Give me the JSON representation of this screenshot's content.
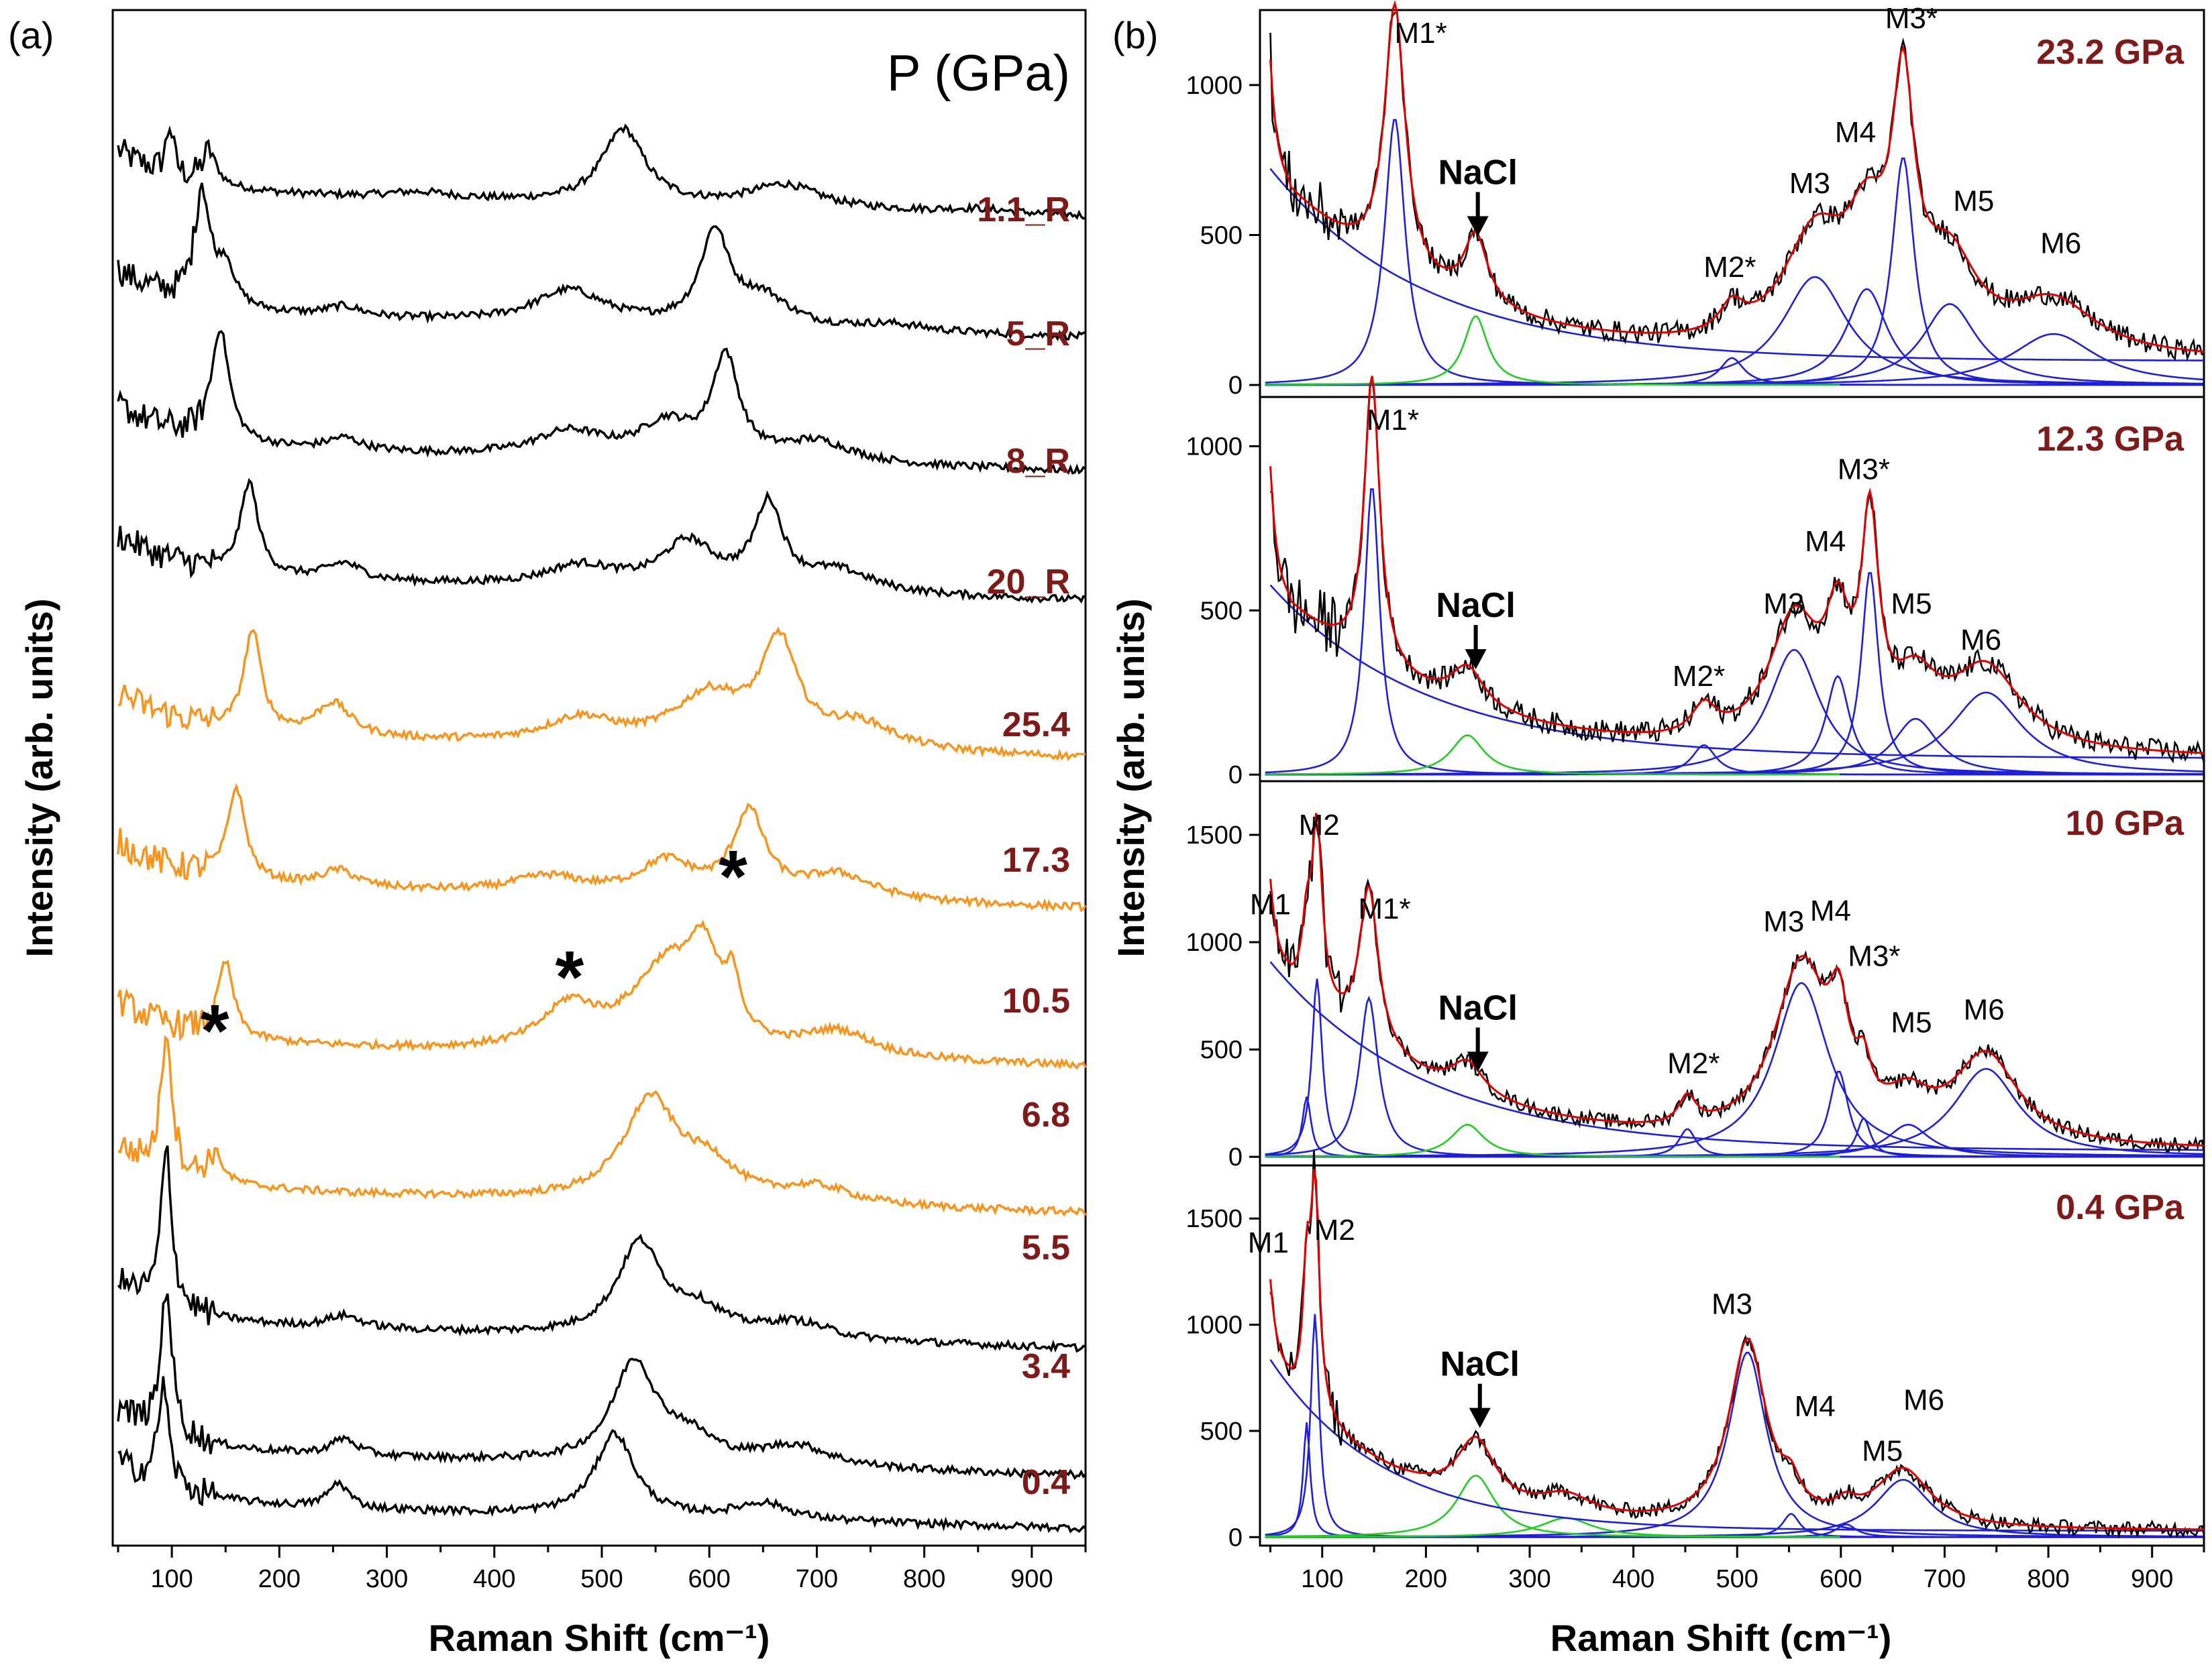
{
  "chart_data": [
    {
      "panel": "(a)",
      "type": "line",
      "title": "P (GPa)",
      "xlabel": "Raman Shift (cm⁻¹)",
      "ylabel": "Intensity (arb. units)",
      "xlim": [
        45,
        950
      ],
      "xticks": [
        100,
        200,
        300,
        400,
        500,
        600,
        700,
        800,
        900
      ],
      "series": [
        {
          "name": "1.1_R",
          "color": "#000000",
          "offset": 10,
          "amp": 1.25,
          "peaks": [
            [
              98,
              0.6,
              4
            ],
            [
              135,
              0.4,
              8
            ],
            [
              330,
              0.08,
              40
            ],
            [
              520,
              0.9,
              24
            ],
            [
              670,
              0.28,
              40
            ],
            [
              850,
              0.05,
              40
            ]
          ],
          "base": 0.25
        },
        {
          "name": "5_R",
          "color": "#000000",
          "offset": 9,
          "amp": 1.25,
          "peaks": [
            [
              128,
              1.4,
              8
            ],
            [
              150,
              0.5,
              10
            ],
            [
              260,
              0.12,
              20
            ],
            [
              470,
              0.4,
              40
            ],
            [
              605,
              1.1,
              16
            ],
            [
              650,
              0.35,
              30
            ],
            [
              770,
              0.08,
              40
            ]
          ],
          "base": 0.2
        },
        {
          "name": "8_R",
          "color": "#000000",
          "offset": 8,
          "amp": 1.25,
          "peaks": [
            [
              145,
              1.35,
              10
            ],
            [
              260,
              0.15,
              20
            ],
            [
              470,
              0.3,
              40
            ],
            [
              560,
              0.4,
              30
            ],
            [
              615,
              1.2,
              15
            ],
            [
              700,
              0.25,
              40
            ]
          ],
          "base": 0.2
        },
        {
          "name": "20_R",
          "color": "#000000",
          "offset": 7,
          "amp": 1.25,
          "peaks": [
            [
              172,
              1.1,
              10
            ],
            [
              260,
              0.2,
              20
            ],
            [
              480,
              0.25,
              40
            ],
            [
              580,
              0.55,
              30
            ],
            [
              655,
              1.0,
              16
            ],
            [
              720,
              0.25,
              40
            ]
          ],
          "base": 0.2
        },
        {
          "name": "25.4",
          "color": "#f7941d",
          "offset": 6,
          "amp": 1.25,
          "peaks": [
            [
              175,
              1.2,
              10
            ],
            [
              250,
              0.4,
              20
            ],
            [
              480,
              0.3,
              40
            ],
            [
              600,
              0.6,
              40
            ],
            [
              665,
              1.2,
              20
            ],
            [
              740,
              0.3,
              40
            ]
          ],
          "base": 0.2
        },
        {
          "name": "17.3",
          "color": "#f7941d",
          "offset": 5,
          "amp": 1.25,
          "peaks": [
            [
              160,
              1.1,
              10
            ],
            [
              255,
              0.2,
              20
            ],
            [
              450,
              0.2,
              40
            ],
            [
              560,
              0.4,
              30
            ],
            [
              637,
              1.0,
              18
            ],
            [
              720,
              0.3,
              40
            ]
          ],
          "base": 0.2
        },
        {
          "name": "10.5",
          "color": "#f7941d",
          "offset": 4,
          "amp": 1.25,
          "peaks": [
            [
              150,
              0.9,
              9
            ],
            [
              470,
              0.5,
              30
            ],
            [
              560,
              1.0,
              40
            ],
            [
              595,
              0.9,
              18
            ],
            [
              622,
              0.6,
              8
            ],
            [
              720,
              0.3,
              40
            ]
          ],
          "base": 0.2
        },
        {
          "name": "6.8",
          "color": "#f7941d",
          "offset": 3,
          "amp": 1.25,
          "peaks": [
            [
              95,
              1.7,
              6
            ],
            [
              140,
              0.35,
              8
            ],
            [
              545,
              1.2,
              30
            ],
            [
              600,
              0.4,
              30
            ],
            [
              700,
              0.2,
              40
            ]
          ],
          "base": 0.2
        },
        {
          "name": "5.5",
          "color": "#000000",
          "offset": 2,
          "amp": 1.25,
          "peaks": [
            [
              95,
              1.9,
              6
            ],
            [
              260,
              0.15,
              20
            ],
            [
              535,
              1.1,
              25
            ],
            [
              590,
              0.3,
              30
            ],
            [
              680,
              0.2,
              40
            ]
          ],
          "base": 0.2
        },
        {
          "name": "3.4",
          "color": "#000000",
          "offset": 1,
          "amp": 1.25,
          "peaks": [
            [
              95,
              1.8,
              6
            ],
            [
              260,
              0.2,
              15
            ],
            [
              530,
              1.2,
              24
            ],
            [
              580,
              0.3,
              30
            ],
            [
              680,
              0.25,
              40
            ]
          ],
          "base": 0.2
        },
        {
          "name": "0.4",
          "color": "#000000",
          "offset": 0,
          "amp": 1.25,
          "peaks": [
            [
              92,
              1.2,
              6
            ],
            [
              255,
              0.3,
              12
            ],
            [
              512,
              1.0,
              22
            ],
            [
              650,
              0.2,
              30
            ]
          ],
          "base": 0.15
        }
      ],
      "annotations": [
        {
          "text": "*",
          "x": 140
        },
        {
          "text": "*",
          "x": 470
        },
        {
          "text": "*",
          "x": 622
        }
      ]
    },
    {
      "panel": "(b)",
      "type": "line",
      "xlabel": "Raman Shift (cm⁻¹)",
      "ylabel": "Intensity (arb. units)",
      "xlim": [
        40,
        950
      ],
      "xticks": [
        100,
        200,
        300,
        400,
        500,
        600,
        700,
        800,
        900
      ],
      "subplots": [
        {
          "pressure": "23.2 GPa",
          "ylim": [
            -40,
            1250
          ],
          "yticks": [
            0,
            500,
            1000
          ],
          "background": {
            "a0": 700,
            "x0": 55,
            "decay": 150,
            "floor": 80
          },
          "blue_peaks": [
            [
              170,
              890,
              12
            ],
            [
              495,
              90,
              14
            ],
            [
              575,
              360,
              38
            ],
            [
              625,
              320,
              24
            ],
            [
              660,
              760,
              13
            ],
            [
              705,
              270,
              32
            ],
            [
              805,
              170,
              50
            ]
          ],
          "green_peaks": [
            [
              248,
              230,
              10
            ]
          ],
          "labels": [
            {
              "text": "M1*",
              "x": 195,
              "y": 1140
            },
            {
              "text": "M2*",
              "x": 493,
              "y": 360
            },
            {
              "text": "M3",
              "x": 570,
              "y": 640
            },
            {
              "text": "M4",
              "x": 614,
              "y": 810
            },
            {
              "text": "M3*",
              "x": 668,
              "y": 1190
            },
            {
              "text": "M5",
              "x": 728,
              "y": 580
            },
            {
              "text": "M6",
              "x": 812,
              "y": 440
            }
          ],
          "nacl": {
            "text": "NaCl",
            "x": 250,
            "y": 670
          }
        },
        {
          "pressure": "12.3 GPa",
          "ylim": [
            -20,
            1150
          ],
          "yticks": [
            0,
            500,
            1000
          ],
          "background": {
            "a0": 560,
            "x0": 55,
            "decay": 150,
            "floor": 50
          },
          "blue_peaks": [
            [
              148,
              880,
              9
            ],
            [
              468,
              90,
              14
            ],
            [
              555,
              380,
              30
            ],
            [
              597,
              300,
              14
            ],
            [
              628,
              620,
              10
            ],
            [
              672,
              170,
              26
            ],
            [
              740,
              250,
              42
            ]
          ],
          "green_peaks": [
            [
              240,
              120,
              14
            ]
          ],
          "labels": [
            {
              "text": "M1*",
              "x": 168,
              "y": 1050
            },
            {
              "text": "M2*",
              "x": 463,
              "y": 270
            },
            {
              "text": "M3",
              "x": 545,
              "y": 490
            },
            {
              "text": "M4",
              "x": 585,
              "y": 680
            },
            {
              "text": "M3*",
              "x": 622,
              "y": 900
            },
            {
              "text": "M5",
              "x": 668,
              "y": 490
            },
            {
              "text": "M6",
              "x": 735,
              "y": 380
            }
          ],
          "nacl": {
            "text": "NaCl",
            "x": 248,
            "y": 480
          }
        },
        {
          "pressure": "10 GPa",
          "ylim": [
            -40,
            1750
          ],
          "yticks": [
            0,
            500,
            1000,
            1500
          ],
          "background": {
            "a0": 880,
            "x0": 55,
            "decay": 150,
            "floor": 30
          },
          "blue_peaks": [
            [
              85,
              280,
              5
            ],
            [
              95,
              830,
              6
            ],
            [
              145,
              740,
              11
            ],
            [
              452,
              130,
              10
            ],
            [
              562,
              810,
              32
            ],
            [
              598,
              400,
              11
            ],
            [
              622,
              180,
              8
            ],
            [
              665,
              150,
              25
            ],
            [
              740,
              410,
              38
            ]
          ],
          "green_peaks": [
            [
              240,
              150,
              14
            ]
          ],
          "labels": [
            {
              "text": "M1",
              "x": 50,
              "y": 1130
            },
            {
              "text": "M2",
              "x": 97,
              "y": 1500
            },
            {
              "text": "M1*",
              "x": 160,
              "y": 1110
            },
            {
              "text": "M2*",
              "x": 458,
              "y": 390
            },
            {
              "text": "M3",
              "x": 545,
              "y": 1050
            },
            {
              "text": "M4",
              "x": 590,
              "y": 1100
            },
            {
              "text": "M3*",
              "x": 632,
              "y": 890
            },
            {
              "text": "M5",
              "x": 668,
              "y": 580
            },
            {
              "text": "M6",
              "x": 738,
              "y": 640
            }
          ],
          "nacl": {
            "text": "NaCl",
            "x": 250,
            "y": 640
          }
        },
        {
          "pressure": "0.4 GPa",
          "ylim": [
            -40,
            1750
          ],
          "yticks": [
            0,
            500,
            1000,
            1500
          ],
          "background": {
            "a0": 800,
            "x0": 55,
            "decay": 110,
            "floor": 30
          },
          "blue_peaks": [
            [
              85,
              540,
              4
            ],
            [
              93,
              1050,
              5
            ],
            [
              510,
              870,
              22
            ],
            [
              552,
              110,
              10
            ],
            [
              605,
              60,
              12
            ],
            [
              660,
              270,
              32
            ]
          ],
          "green_peaks": [
            [
              248,
              290,
              16
            ],
            [
              335,
              90,
              22
            ]
          ],
          "labels": [
            {
              "text": "M1",
              "x": 48,
              "y": 1340
            },
            {
              "text": "M2",
              "x": 112,
              "y": 1400
            },
            {
              "text": "M3",
              "x": 495,
              "y": 1050
            },
            {
              "text": "M4",
              "x": 575,
              "y": 570
            },
            {
              "text": "M5",
              "x": 640,
              "y": 360
            },
            {
              "text": "M6",
              "x": 680,
              "y": 600
            }
          ],
          "nacl": {
            "text": "NaCl",
            "x": 252,
            "y": 760
          }
        }
      ]
    }
  ]
}
